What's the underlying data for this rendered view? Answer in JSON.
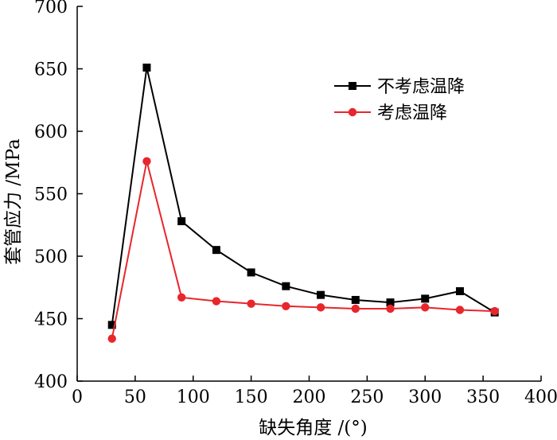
{
  "chart_data": {
    "type": "line",
    "title": "",
    "xlabel": "缺失角度 /(°)",
    "ylabel": "套管应力 /MPa",
    "xlim": [
      0,
      400
    ],
    "ylim": [
      400,
      700
    ],
    "x_ticks": [
      0,
      50,
      100,
      150,
      200,
      250,
      300,
      350,
      400
    ],
    "y_ticks": [
      400,
      450,
      500,
      550,
      600,
      650,
      700
    ],
    "grid": false,
    "legend_position": "top-right",
    "series": [
      {
        "name": "不考虑温降",
        "color": "#000000",
        "marker": "square",
        "x": [
          30,
          60,
          90,
          120,
          150,
          180,
          210,
          240,
          270,
          300,
          330,
          360
        ],
        "y": [
          445,
          651,
          528,
          505,
          487,
          476,
          469,
          465,
          463,
          466,
          472,
          455
        ]
      },
      {
        "name": "考虑温降",
        "color": "#e8262b",
        "marker": "circle",
        "x": [
          30,
          60,
          90,
          120,
          150,
          180,
          210,
          240,
          270,
          300,
          330,
          360
        ],
        "y": [
          434,
          576,
          467,
          464,
          462,
          460,
          459,
          458,
          458,
          459,
          457,
          456
        ]
      }
    ]
  }
}
